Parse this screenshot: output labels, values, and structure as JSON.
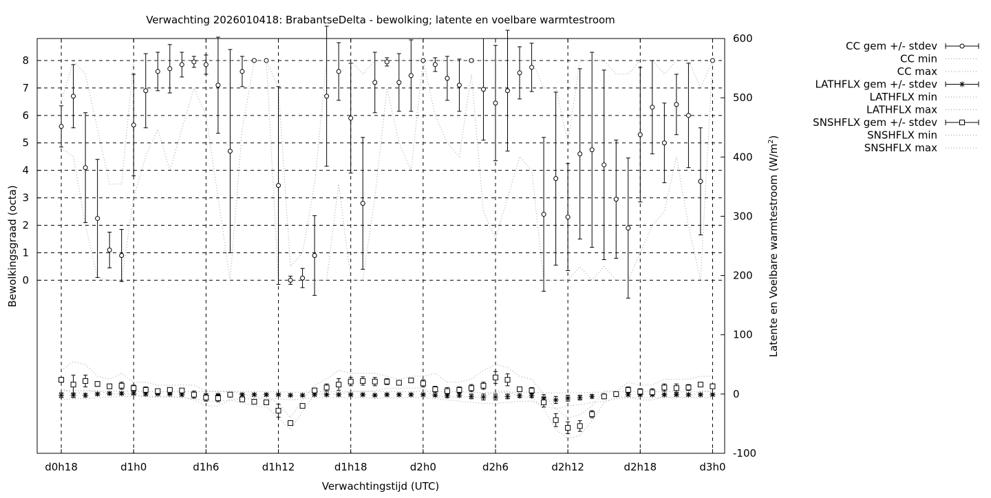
{
  "chart_data": {
    "type": "line",
    "title": "Verwachting 2026010418: BrabantseDelta - bewolking; latente en voelbare warmtestroom",
    "xlabel": "Verwachtingstijd (UTC)",
    "ylabel_left": "Bewolkingsgraad (octa)",
    "ylabel_right_prefix": "Latente en Voelbare warmtestroom (W/m",
    "ylabel_right_sup": "2",
    "ylabel_right_suffix": ")",
    "x_unit": "hours since d0h0",
    "x_range": [
      16,
      73
    ],
    "x_ticks": [
      {
        "x": 18,
        "label": "d0h18"
      },
      {
        "x": 24,
        "label": "d1h0"
      },
      {
        "x": 30,
        "label": "d1h6"
      },
      {
        "x": 36,
        "label": "d1h12"
      },
      {
        "x": 42,
        "label": "d1h18"
      },
      {
        "x": 48,
        "label": "d2h0"
      },
      {
        "x": 54,
        "label": "d2h6"
      },
      {
        "x": 60,
        "label": "d2h12"
      },
      {
        "x": 66,
        "label": "d2h18"
      },
      {
        "x": 72,
        "label": "d3h0"
      }
    ],
    "y_left_range": [
      -6.3,
      8.8
    ],
    "y_left_ticks": [
      "0",
      "1",
      "2",
      "3",
      "4",
      "5",
      "6",
      "7",
      "8"
    ],
    "y_right_range": [
      -100,
      600
    ],
    "y_right_ticks": [
      "-100",
      "0",
      "100",
      "200",
      "300",
      "400",
      "500",
      "600"
    ],
    "grid": true,
    "legend_position": "outside-right",
    "legend": [
      {
        "label": "CC gem +/- stdev",
        "style": "errorbar-circle"
      },
      {
        "label": "CC min",
        "style": "dotted"
      },
      {
        "label": "CC max",
        "style": "dotted"
      },
      {
        "label": "LATHFLX gem +/- stdev",
        "style": "errorbar-star"
      },
      {
        "label": "LATHFLX min",
        "style": "dotted"
      },
      {
        "label": "LATHFLX max",
        "style": "dotted"
      },
      {
        "label": "SNSHFLX gem +/- stdev",
        "style": "errorbar-square"
      },
      {
        "label": "SNSHFLX min",
        "style": "dotted"
      },
      {
        "label": "SNSHFLX max",
        "style": "dotted"
      }
    ],
    "x": [
      18,
      19,
      20,
      21,
      22,
      23,
      24,
      25,
      26,
      27,
      28,
      29,
      30,
      31,
      32,
      33,
      34,
      35,
      36,
      37,
      38,
      39,
      40,
      41,
      42,
      43,
      44,
      45,
      46,
      47,
      48,
      49,
      50,
      51,
      52,
      53,
      54,
      55,
      56,
      57,
      58,
      59,
      60,
      61,
      62,
      63,
      64,
      65,
      66,
      67,
      68,
      69,
      70,
      71,
      72
    ],
    "series": [
      {
        "name": "CC gem +/- stdev",
        "axis": "left",
        "mean": [
          5.6,
          6.7,
          4.1,
          2.25,
          1.1,
          0.9,
          5.65,
          6.9,
          7.6,
          7.7,
          7.85,
          7.95,
          7.85,
          7.1,
          4.7,
          7.6,
          8.0,
          8.0,
          3.45,
          0.0,
          0.08,
          0.9,
          6.7,
          7.6,
          5.9,
          2.8,
          7.2,
          7.95,
          7.2,
          7.45,
          8.0,
          7.85,
          7.35,
          7.1,
          8.0,
          6.95,
          6.45,
          6.9,
          7.55,
          7.75,
          2.4,
          3.7,
          2.3,
          4.6,
          4.75,
          4.2,
          2.95,
          1.9,
          5.3,
          6.3,
          5.0,
          6.4,
          6.0,
          3.6,
          8.0
        ],
        "stdev": [
          0.75,
          1.15,
          2.0,
          2.15,
          0.65,
          0.95,
          1.85,
          1.35,
          0.7,
          0.88,
          0.45,
          0.2,
          0.35,
          1.75,
          3.7,
          0.55,
          0.0,
          0.0,
          3.6,
          0.15,
          0.35,
          1.45,
          2.55,
          1.05,
          2.0,
          2.4,
          1.1,
          0.15,
          1.05,
          1.3,
          0.0,
          0.25,
          0.8,
          0.95,
          0.05,
          1.85,
          2.1,
          2.2,
          0.95,
          0.88,
          2.8,
          3.15,
          1.95,
          3.1,
          3.55,
          3.45,
          2.15,
          2.55,
          2.45,
          1.7,
          1.45,
          1.1,
          1.9,
          1.95,
          0.0
        ]
      },
      {
        "name": "CC min",
        "axis": "left",
        "values": [
          4.8,
          4.5,
          2.0,
          0.1,
          0.0,
          0.0,
          3.0,
          4.5,
          5.5,
          4.0,
          5.5,
          7.0,
          6.0,
          3.0,
          0.0,
          5.5,
          8.0,
          8.0,
          0.0,
          0.0,
          0.0,
          0.0,
          0.0,
          3.5,
          0.0,
          0.0,
          3.0,
          7.0,
          5.0,
          4.0,
          8.0,
          6.0,
          5.0,
          4.5,
          7.5,
          2.5,
          1.5,
          3.0,
          4.5,
          4.0,
          0.0,
          0.0,
          0.0,
          0.5,
          0.0,
          0.5,
          0.0,
          0.0,
          1.0,
          2.0,
          2.5,
          4.5,
          2.0,
          0.0,
          8.0
        ]
      },
      {
        "name": "CC max",
        "axis": "left",
        "values": [
          6.5,
          8.0,
          7.5,
          5.5,
          3.5,
          3.5,
          8.0,
          8.0,
          8.0,
          8.0,
          8.0,
          8.0,
          8.0,
          8.0,
          8.0,
          8.0,
          8.0,
          8.0,
          7.0,
          0.5,
          1.0,
          3.5,
          8.0,
          8.0,
          8.0,
          7.5,
          8.0,
          8.0,
          8.0,
          8.0,
          8.0,
          8.0,
          8.0,
          8.0,
          8.0,
          8.0,
          8.0,
          8.0,
          8.0,
          8.0,
          7.0,
          7.0,
          5.0,
          8.0,
          8.0,
          8.0,
          7.5,
          7.5,
          8.0,
          8.0,
          7.5,
          8.0,
          8.0,
          7.0,
          8.0
        ]
      },
      {
        "name": "LATHFLX gem +/- stdev",
        "axis": "right",
        "mean": [
          -2,
          -2,
          -2,
          0,
          1,
          1,
          1,
          0,
          0,
          0,
          -1,
          -2,
          -2,
          -2,
          -2,
          -1,
          -1,
          -1,
          -1,
          -2,
          -2,
          -1,
          -1,
          -1,
          -1,
          -1,
          -2,
          -1,
          -1,
          -1,
          -1,
          -2,
          -3,
          -2,
          -4,
          -5,
          -5,
          -4,
          -3,
          -3,
          -7,
          -10,
          -7,
          -6,
          -4,
          -3,
          -1,
          -1,
          -1,
          -1,
          -1,
          -1,
          -1,
          -1,
          -1
        ],
        "stdev": [
          4,
          4,
          3,
          2,
          2,
          2,
          2,
          2,
          1,
          1,
          2,
          2,
          2,
          2,
          2,
          2,
          2,
          2,
          2,
          2,
          2,
          2,
          2,
          2,
          2,
          2,
          2,
          2,
          2,
          2,
          2,
          2,
          3,
          3,
          4,
          5,
          5,
          4,
          3,
          3,
          6,
          6,
          5,
          4,
          3,
          3,
          2,
          2,
          2,
          2,
          2,
          2,
          2,
          2,
          2
        ]
      },
      {
        "name": "LATHFLX min",
        "axis": "right",
        "values": [
          -10,
          -8,
          -8,
          -6,
          -5,
          -4,
          -4,
          -4,
          -4,
          -4,
          -6,
          -8,
          -12,
          -12,
          -10,
          -8,
          -8,
          -8,
          -8,
          -10,
          -8,
          -6,
          -6,
          -6,
          -6,
          -6,
          -8,
          -6,
          -6,
          -6,
          -6,
          -8,
          -10,
          -12,
          -14,
          -16,
          -16,
          -14,
          -12,
          -12,
          -20,
          -25,
          -20,
          -18,
          -14,
          -12,
          -8,
          -6,
          -6,
          -6,
          -6,
          -6,
          -6,
          -6,
          -6
        ]
      },
      {
        "name": "LATHFLX max",
        "axis": "right",
        "values": [
          6,
          6,
          6,
          5,
          5,
          5,
          5,
          4,
          4,
          4,
          4,
          4,
          4,
          4,
          4,
          4,
          4,
          4,
          4,
          3,
          3,
          4,
          4,
          4,
          4,
          4,
          4,
          4,
          4,
          4,
          5,
          4,
          4,
          4,
          3,
          2,
          2,
          3,
          3,
          3,
          2,
          2,
          2,
          2,
          3,
          3,
          4,
          4,
          4,
          4,
          4,
          4,
          4,
          4,
          4
        ]
      },
      {
        "name": "SNSHFLX gem +/- stdev",
        "axis": "right",
        "mean": [
          24,
          16,
          22,
          17,
          13,
          14,
          10,
          7,
          5,
          7,
          6,
          -1,
          -6,
          -7,
          -1,
          -9,
          -13,
          -14,
          -28,
          -49,
          -20,
          6,
          11,
          16,
          21,
          22,
          21,
          21,
          19,
          23,
          18,
          8,
          5,
          7,
          10,
          14,
          28,
          24,
          8,
          6,
          -14,
          -44,
          -57,
          -54,
          -34,
          -4,
          0,
          7,
          4,
          3,
          11,
          10,
          11,
          16,
          13
        ],
        "stdev": [
          4,
          16,
          10,
          4,
          4,
          6,
          5,
          5,
          3,
          3,
          3,
          6,
          6,
          6,
          3,
          3,
          3,
          3,
          11,
          4,
          3,
          4,
          6,
          10,
          7,
          7,
          7,
          5,
          4,
          4,
          6,
          5,
          6,
          5,
          6,
          6,
          10,
          10,
          4,
          5,
          8,
          11,
          10,
          9,
          6,
          4,
          2,
          5,
          5,
          6,
          6,
          7,
          5,
          4,
          4
        ]
      },
      {
        "name": "SNSHFLX min",
        "axis": "right",
        "values": [
          10,
          0,
          5,
          5,
          0,
          0,
          0,
          -5,
          -5,
          -5,
          -5,
          -10,
          -20,
          -20,
          -10,
          -15,
          -20,
          -22,
          -40,
          -60,
          -30,
          0,
          0,
          0,
          5,
          5,
          5,
          10,
          10,
          10,
          10,
          -5,
          -5,
          -5,
          -5,
          -5,
          5,
          5,
          -5,
          -5,
          -25,
          -60,
          -75,
          -70,
          -45,
          -15,
          -5,
          -5,
          -10,
          -10,
          -5,
          -5,
          -5,
          5,
          5
        ]
      },
      {
        "name": "SNSHFLX max",
        "axis": "right",
        "values": [
          40,
          55,
          50,
          30,
          25,
          35,
          20,
          20,
          15,
          15,
          15,
          15,
          5,
          5,
          5,
          0,
          -5,
          -5,
          -15,
          -40,
          -10,
          15,
          25,
          40,
          35,
          35,
          35,
          30,
          25,
          30,
          30,
          35,
          20,
          20,
          25,
          40,
          50,
          45,
          30,
          25,
          0,
          -25,
          -40,
          -35,
          -20,
          5,
          5,
          20,
          15,
          15,
          25,
          25,
          25,
          30,
          30
        ]
      }
    ]
  }
}
